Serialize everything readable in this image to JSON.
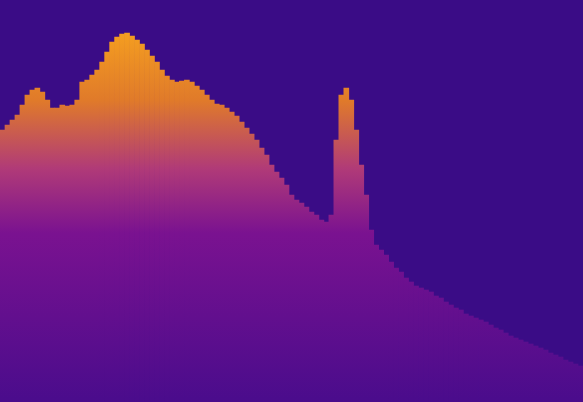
{
  "chart_data": {
    "type": "bar",
    "categories": [
      null,
      null,
      null,
      null,
      null,
      null,
      null,
      null,
      null,
      null,
      null,
      null,
      null,
      null,
      null,
      null,
      null,
      null,
      null,
      null,
      null,
      null,
      null,
      null,
      null,
      null,
      null,
      null,
      null,
      null,
      null,
      null,
      null,
      null,
      null,
      null,
      null,
      null,
      null,
      null,
      null,
      null,
      null,
      null,
      null,
      null,
      null,
      null,
      null,
      null,
      null,
      null,
      null,
      null,
      null,
      null,
      null,
      null,
      null,
      null,
      null,
      null,
      null,
      null,
      null,
      null,
      null,
      null,
      null,
      null,
      null,
      null,
      null,
      null,
      null,
      null,
      null,
      null,
      null,
      null,
      null,
      null,
      null,
      null,
      null,
      null,
      null,
      null,
      null,
      null,
      null,
      null,
      null,
      null,
      null,
      null,
      null,
      null,
      null,
      null,
      null,
      null,
      null,
      null,
      null,
      null,
      null,
      null,
      null,
      null,
      null,
      null,
      null,
      null,
      null,
      null,
      null
    ],
    "values": [
      272,
      277,
      282,
      287,
      297,
      307,
      312,
      314,
      310,
      302,
      294,
      294,
      297,
      296,
      297,
      302,
      320,
      322,
      327,
      332,
      340,
      350,
      360,
      365,
      368,
      369,
      366,
      362,
      358,
      352,
      346,
      340,
      332,
      326,
      322,
      320,
      321,
      322,
      320,
      316,
      312,
      307,
      302,
      298,
      297,
      294,
      290,
      286,
      280,
      274,
      268,
      262,
      254,
      247,
      237,
      230,
      224,
      217,
      207,
      202,
      199,
      195,
      190,
      187,
      182,
      180,
      187,
      262,
      307,
      314,
      302,
      272,
      237,
      207,
      172,
      157,
      152,
      147,
      140,
      134,
      130,
      124,
      120,
      116,
      114,
      112,
      110,
      106,
      104,
      100,
      97,
      94,
      92,
      88,
      86,
      84,
      82,
      80,
      77,
      74,
      72,
      69,
      66,
      64,
      62,
      60,
      58,
      56,
      54,
      52,
      49,
      47,
      45,
      42,
      40,
      38,
      36
    ],
    "color": "#f8a41e",
    "ylim": [
      0,
      402
    ],
    "grid": false,
    "tick_labels": false
  }
}
